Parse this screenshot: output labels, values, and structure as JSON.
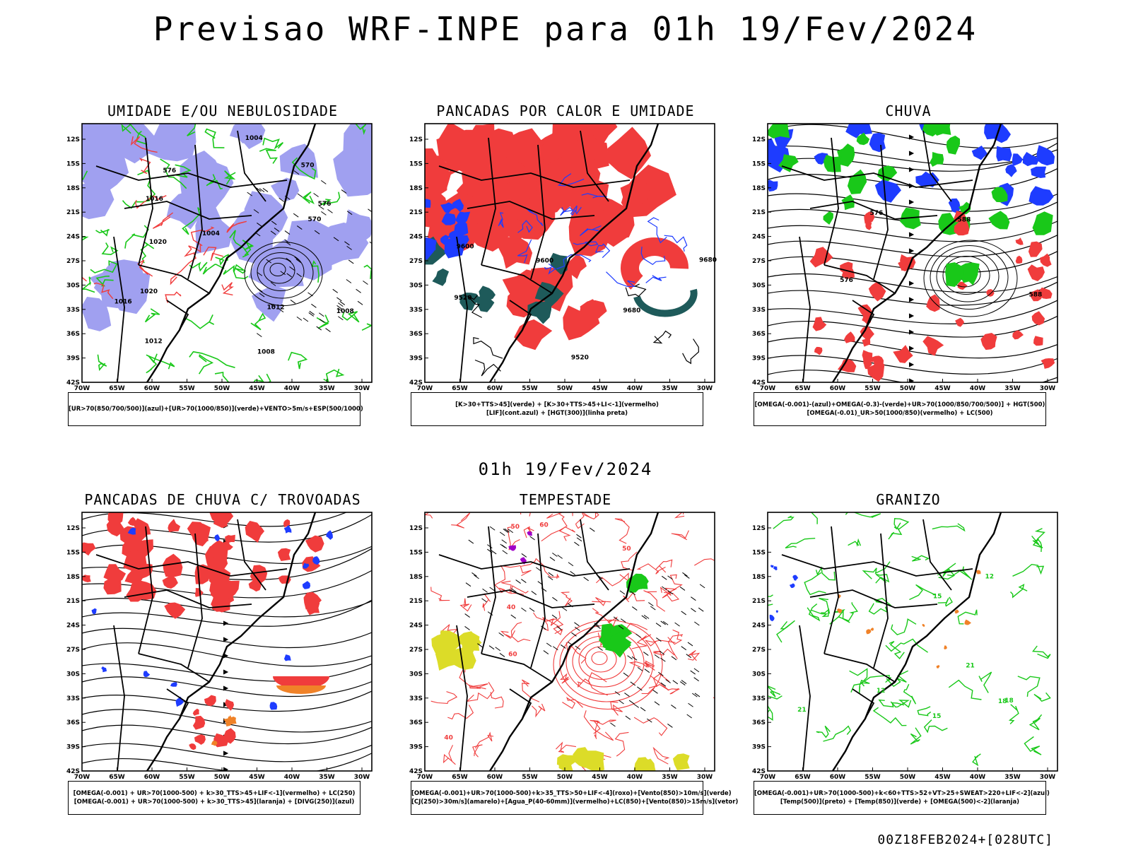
{
  "header": {
    "title": "Previsao WRF-INPE  para 01h 19/Fev/2024"
  },
  "middle": {
    "title": "01h 19/Fev/2024"
  },
  "footer": {
    "run_label": "00Z18FEB2024+[028UTC]"
  },
  "axes": {
    "lat_labels": [
      "12S",
      "15S",
      "18S",
      "21S",
      "24S",
      "27S",
      "30S",
      "33S",
      "36S",
      "39S",
      "42S"
    ],
    "lon_labels": [
      "70W",
      "65W",
      "60W",
      "55W",
      "50W",
      "45W",
      "40W",
      "35W",
      "30W"
    ]
  },
  "colors": {
    "green": "#19c819",
    "red": "#f03c3c",
    "blue": "#1e3cff",
    "lavender": "#a0a0f0",
    "teal": "#1e5a5a",
    "orange": "#f08228",
    "yellow": "#dcdc28",
    "purple": "#a000c8"
  },
  "panels": [
    {
      "id": "umidade",
      "title": "UMIDADE E/OU NEBULOSIDADE",
      "legend": [
        "[UR>70(850/700/500)](azul)+[UR>70(1000/850)](verde)+VENTO>5m/s+ESP(500/1000)"
      ],
      "contour_labels": [
        "1012",
        "1016",
        "1008",
        "1004",
        "1020",
        "576",
        "570"
      ]
    },
    {
      "id": "pancadas",
      "title": "PANCADAS POR CALOR E UMIDADE",
      "legend": [
        "[K>30+TTS>45](verde) + [K>30+TTS>45+LI<-1](vermelho)",
        "[LIF](cont.azul) + [HGT(300)](linha preta)"
      ],
      "contour_labels": [
        "9680",
        "9600",
        "9520"
      ]
    },
    {
      "id": "chuva",
      "title": "CHUVA",
      "legend": [
        "[OMEGA(-0.001)-(azul)+OMEGA(-0.3)-(verde)+UR>70(1000/850/700/500)] + HGT(500)",
        "[OMEGA(-0.01)_UR>50(1000/850)(vermelho) + LC(500)"
      ],
      "contour_labels": [
        "576",
        "588"
      ]
    },
    {
      "id": "trovoadas",
      "title": "PANCADAS DE CHUVA C/ TROVOADAS",
      "legend": [
        "[OMEGA(-0.001) + UR>70(1000-500) + k>30_TTS>45+LIF<-1](vermelho) + LC(250)",
        "[OMEGA(-0.001) + UR>70(1000-500) + k>30_TTS>45](laranja) + [DIVG(250)](azul)"
      ],
      "contour_labels": []
    },
    {
      "id": "tempestade",
      "title": "TEMPESTADE",
      "legend": [
        "[OMEGA(-0.001)+UR>70(1000-500)+k>35_TTS>50+LIF<-4](roxo)+[Vento(850)>10m/s](verde)",
        "[CJ(250)>30m/s](amarelo)+[Agua_P(40-60mm)](vermelho)+LC(850)+[Vento(850)>15m/s](vetor)"
      ],
      "contour_labels": [
        "40",
        "50",
        "60"
      ]
    },
    {
      "id": "granizo",
      "title": "GRANIZO",
      "legend": [
        "[OMEGA(-0.001)+UR>70(1000-500)+k<60+TTS>52+VT>25+SWEAT>220+LIF<-2](azul)",
        "[Temp(500)](preto) + [Temp(850)](verde) + [OMEGA(500)<-2](laranja)"
      ],
      "contour_labels": [
        "12",
        "15",
        "18",
        "21"
      ]
    }
  ]
}
